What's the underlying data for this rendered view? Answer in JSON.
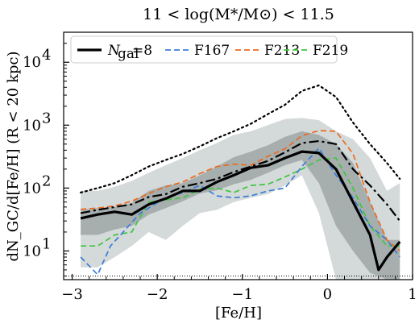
{
  "chart_data": {
    "type": "line",
    "title": "11 < log(M*/M⊙) < 11.5",
    "xlabel": "[Fe/H]",
    "ylabel": "dN_GC/d[Fe/H] (R < 20 kpc)",
    "xlim": [
      -3.1,
      1.0
    ],
    "ylim": [
      3.5,
      30000
    ],
    "yscale": "log",
    "grid": false,
    "legend_position": "top-left",
    "x_ticks": [
      {
        "value": -3,
        "label": "−3"
      },
      {
        "value": -2,
        "label": "−2"
      },
      {
        "value": -1,
        "label": "−1"
      },
      {
        "value": 0,
        "label": "0"
      },
      {
        "value": 1,
        "label": "1"
      }
    ],
    "y_ticks": [
      {
        "value": 10,
        "base": "10",
        "exp": "1"
      },
      {
        "value": 100,
        "base": "10",
        "exp": "2"
      },
      {
        "value": 1000,
        "base": "10",
        "exp": "3"
      },
      {
        "value": 10000,
        "base": "10",
        "exp": "4"
      }
    ],
    "bands": [
      {
        "name": "outer-range",
        "color": "#d4d9d9",
        "x": [
          -2.9,
          -2.7,
          -2.5,
          -2.3,
          -2.1,
          -1.9,
          -1.7,
          -1.5,
          -1.3,
          -1.1,
          -0.9,
          -0.7,
          -0.5,
          -0.3,
          -0.1,
          0.1,
          0.3,
          0.5,
          0.7,
          0.85
        ],
        "upper": [
          90,
          90,
          105,
          130,
          175,
          230,
          300,
          400,
          520,
          700,
          800,
          1000,
          1250,
          1300,
          1200,
          800,
          600,
          300,
          90,
          120
        ],
        "lower": [
          5.5,
          5.5,
          8,
          12,
          20,
          15,
          25,
          40,
          45,
          60,
          70,
          80,
          110,
          160,
          40,
          3.5,
          3.5,
          3.5,
          3.5,
          3.5
        ]
      },
      {
        "name": "inner-range",
        "color": "#a7aeae",
        "x": [
          -2.9,
          -2.7,
          -2.5,
          -2.3,
          -2.1,
          -1.9,
          -1.7,
          -1.5,
          -1.3,
          -1.1,
          -0.9,
          -0.7,
          -0.5,
          -0.3,
          -0.1,
          0.1,
          0.3,
          0.5,
          0.7,
          0.85
        ],
        "upper": [
          45,
          48,
          50,
          58,
          90,
          110,
          120,
          160,
          220,
          310,
          380,
          480,
          650,
          800,
          700,
          500,
          250,
          60,
          15,
          15
        ],
        "lower": [
          18,
          18,
          22,
          25,
          38,
          48,
          62,
          82,
          92,
          115,
          135,
          175,
          230,
          280,
          120,
          25,
          10,
          4.5,
          3.5,
          3.5
        ]
      }
    ],
    "series": [
      {
        "name": "N_gal=8",
        "legend_label": "=8",
        "color": "#000000",
        "style": "solid",
        "width": 3.2,
        "x": [
          -2.9,
          -2.7,
          -2.5,
          -2.3,
          -2.1,
          -1.9,
          -1.7,
          -1.5,
          -1.3,
          -1.1,
          -0.9,
          -0.7,
          -0.5,
          -0.3,
          -0.1,
          0.1,
          0.3,
          0.5,
          0.6,
          0.7,
          0.85
        ],
        "y": [
          33,
          38,
          42,
          38,
          55,
          68,
          90,
          90,
          125,
          160,
          210,
          230,
          300,
          380,
          360,
          200,
          60,
          18,
          5,
          8,
          14
        ]
      },
      {
        "name": "F167",
        "color": "#3b7dd8",
        "style": "dashed",
        "width": 1.7,
        "x": [
          -2.9,
          -2.7,
          -2.55,
          -2.4,
          -2.2,
          -1.9,
          -1.7,
          -1.5,
          -1.3,
          -1.1,
          -0.9,
          -0.7,
          -0.5,
          -0.3,
          -0.1,
          0.1,
          0.3,
          0.5,
          0.7,
          0.85
        ],
        "y": [
          8,
          4.2,
          12,
          20,
          40,
          70,
          85,
          110,
          75,
          70,
          75,
          90,
          100,
          220,
          430,
          160,
          70,
          25,
          15,
          8
        ]
      },
      {
        "name": "F213",
        "color": "#ec6b1f",
        "style": "dashed",
        "width": 1.7,
        "x": [
          -2.9,
          -2.7,
          -2.5,
          -2.3,
          -2.1,
          -1.9,
          -1.7,
          -1.5,
          -1.3,
          -1.1,
          -0.9,
          -0.7,
          -0.5,
          -0.3,
          -0.1,
          0.1,
          0.3,
          0.5,
          0.7,
          0.85
        ],
        "y": [
          46,
          48,
          52,
          62,
          82,
          105,
          125,
          170,
          220,
          240,
          230,
          320,
          420,
          680,
          820,
          800,
          350,
          60,
          15,
          10
        ]
      },
      {
        "name": "F219",
        "color": "#3ec63e",
        "style": "dashed",
        "width": 1.7,
        "x": [
          -2.9,
          -2.7,
          -2.5,
          -2.3,
          -2.1,
          -1.9,
          -1.7,
          -1.5,
          -1.3,
          -1.1,
          -0.9,
          -0.7,
          -0.5,
          -0.3,
          -0.1,
          0.1,
          0.3,
          0.5,
          0.7,
          0.85
        ],
        "y": [
          12,
          12,
          18,
          20,
          60,
          65,
          70,
          95,
          100,
          85,
          110,
          115,
          150,
          200,
          280,
          300,
          100,
          25,
          12,
          12
        ]
      },
      {
        "name": "dashdot",
        "color": "#000000",
        "style": "dashdot",
        "width": 2.2,
        "legend": false,
        "x": [
          -2.9,
          -2.7,
          -2.5,
          -2.3,
          -2.1,
          -1.9,
          -1.7,
          -1.5,
          -1.3,
          -1.1,
          -0.9,
          -0.7,
          -0.5,
          -0.3,
          -0.1,
          0.1,
          0.3,
          0.5,
          0.7,
          0.85
        ],
        "y": [
          40,
          45,
          50,
          55,
          72,
          80,
          105,
          120,
          140,
          180,
          220,
          270,
          370,
          520,
          560,
          500,
          200,
          110,
          55,
          30
        ]
      },
      {
        "name": "dotted",
        "color": "#000000",
        "style": "dotted",
        "width": 2.2,
        "legend": false,
        "x": [
          -2.9,
          -2.7,
          -2.5,
          -2.3,
          -2.1,
          -1.9,
          -1.7,
          -1.5,
          -1.3,
          -1.1,
          -0.9,
          -0.7,
          -0.5,
          -0.3,
          -0.1,
          0.1,
          0.3,
          0.5,
          0.7,
          0.85
        ],
        "y": [
          85,
          100,
          120,
          160,
          220,
          280,
          350,
          460,
          620,
          800,
          1050,
          1500,
          2100,
          3500,
          4300,
          2800,
          1100,
          500,
          250,
          140
        ]
      },
      {
        "name": "baseline",
        "color": "#000000",
        "style": "finedot",
        "width": 1,
        "legend": false,
        "x": [
          -3.1,
          1.0
        ],
        "y": [
          4.0,
          4.0
        ]
      }
    ]
  }
}
